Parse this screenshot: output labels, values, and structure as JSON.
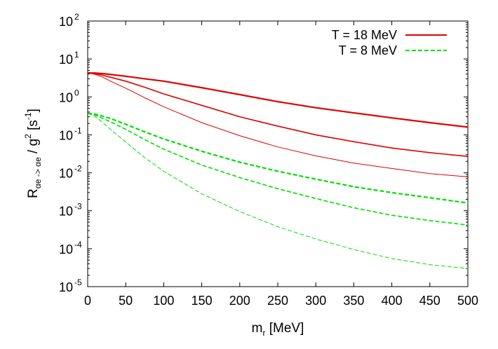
{
  "chart_data": {
    "type": "line",
    "xlabel": {
      "main": "m",
      "sub": "r",
      "rest": " [MeV]"
    },
    "ylabel": {
      "main": "R",
      "sub": "αe -> αe",
      "mid": " / g",
      "sup1": "2",
      "bracket_open": " [s",
      "sup2": "-1",
      "bracket_close": "]"
    },
    "xlim": [
      0,
      500
    ],
    "ylim": [
      1e-05,
      100
    ],
    "y_scale": "log",
    "x_ticks": [
      {
        "value": 0,
        "label": "0"
      },
      {
        "value": 50,
        "label": "50"
      },
      {
        "value": 100,
        "label": "100"
      },
      {
        "value": 150,
        "label": "150"
      },
      {
        "value": 200,
        "label": "200"
      },
      {
        "value": 250,
        "label": "250"
      },
      {
        "value": 300,
        "label": "300"
      },
      {
        "value": 350,
        "label": "350"
      },
      {
        "value": 400,
        "label": "400"
      },
      {
        "value": 450,
        "label": "450"
      },
      {
        "value": 500,
        "label": "500"
      }
    ],
    "y_ticks": [
      {
        "exp": -5,
        "base": "10",
        "sup": "-5"
      },
      {
        "exp": -4,
        "base": "10",
        "sup": "-4"
      },
      {
        "exp": -3,
        "base": "10",
        "sup": "-3"
      },
      {
        "exp": -2,
        "base": "10",
        "sup": "-2"
      },
      {
        "exp": -1,
        "base": "10",
        "sup": "-1"
      },
      {
        "exp": 0,
        "base": "10",
        "sup": "0"
      },
      {
        "exp": 1,
        "base": "10",
        "sup": "1"
      },
      {
        "exp": 2,
        "base": "10",
        "sup": "2"
      }
    ],
    "legend": [
      {
        "label": "T = 18 MeV",
        "color": "#e00000",
        "dash": "solid"
      },
      {
        "label": "T = 8 MeV",
        "color": "#00e000",
        "dash": "dashed"
      }
    ],
    "legend_position": "top-right",
    "series": [
      {
        "group": 0,
        "color": "#e00000",
        "dash": "solid",
        "weight": "heavy",
        "x": [
          0,
          10,
          20,
          30,
          50,
          75,
          100,
          150,
          200,
          250,
          300,
          350,
          400,
          450,
          500
        ],
        "y": [
          4.3,
          4.25,
          4.1,
          3.9,
          3.5,
          3.0,
          2.6,
          1.75,
          1.15,
          0.75,
          0.52,
          0.38,
          0.28,
          0.21,
          0.16
        ]
      },
      {
        "group": 0,
        "color": "#e00000",
        "dash": "solid",
        "weight": "medium",
        "x": [
          0,
          10,
          20,
          30,
          50,
          75,
          100,
          150,
          200,
          250,
          300,
          350,
          400,
          450,
          500
        ],
        "y": [
          4.3,
          4.1,
          3.7,
          3.3,
          2.6,
          1.8,
          1.2,
          0.6,
          0.3,
          0.17,
          0.1,
          0.066,
          0.045,
          0.034,
          0.027
        ]
      },
      {
        "group": 0,
        "color": "#e00000",
        "dash": "solid",
        "weight": "light",
        "x": [
          0,
          10,
          20,
          30,
          50,
          75,
          100,
          150,
          200,
          250,
          300,
          350,
          400,
          450,
          500
        ],
        "y": [
          4.3,
          3.9,
          3.3,
          2.6,
          1.7,
          0.95,
          0.55,
          0.21,
          0.095,
          0.048,
          0.028,
          0.018,
          0.013,
          0.0095,
          0.0078
        ]
      },
      {
        "group": 1,
        "color": "#00e000",
        "dash": "dashed",
        "weight": "heavy",
        "x": [
          0,
          10,
          20,
          30,
          50,
          75,
          100,
          150,
          200,
          250,
          300,
          350,
          400,
          450,
          500
        ],
        "y": [
          0.37,
          0.35,
          0.31,
          0.27,
          0.19,
          0.12,
          0.078,
          0.037,
          0.019,
          0.011,
          0.0068,
          0.0043,
          0.003,
          0.0022,
          0.0016
        ]
      },
      {
        "group": 1,
        "color": "#00e000",
        "dash": "dashed",
        "weight": "medium",
        "x": [
          0,
          10,
          20,
          30,
          50,
          75,
          100,
          150,
          200,
          250,
          300,
          350,
          400,
          450,
          500
        ],
        "y": [
          0.37,
          0.33,
          0.27,
          0.22,
          0.14,
          0.075,
          0.042,
          0.016,
          0.0075,
          0.0038,
          0.0021,
          0.0012,
          0.00076,
          0.00055,
          0.00042
        ]
      },
      {
        "group": 1,
        "color": "#00e000",
        "dash": "dashed",
        "weight": "light",
        "x": [
          0,
          10,
          20,
          30,
          50,
          75,
          100,
          150,
          200,
          250,
          300,
          350,
          400,
          450,
          500
        ],
        "y": [
          0.37,
          0.3,
          0.21,
          0.14,
          0.065,
          0.025,
          0.011,
          0.0028,
          0.00095,
          0.00038,
          0.00018,
          9.5e-05,
          5.5e-05,
          3.8e-05,
          3e-05
        ]
      }
    ]
  }
}
